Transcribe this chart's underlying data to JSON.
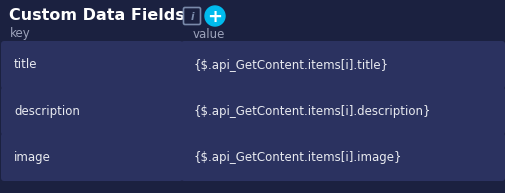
{
  "title": "Custom Data Fields",
  "bg_color": "#1b2140",
  "header_text_color": "#ffffff",
  "col_label_color": "#9da3bb",
  "cell_bg_color": "#2b3260",
  "cell_border_color": "#3a4070",
  "cell_text_color": "#e8eaf0",
  "col_key_label": "key",
  "col_value_label": "value",
  "rows": [
    {
      "key": "title",
      "value": "{$.api_GetContent.items[i].title}"
    },
    {
      "key": "description",
      "value": "{$.api_GetContent.items[i].description}"
    },
    {
      "key": "image",
      "value": "{$.api_GetContent.items[i].image}"
    }
  ],
  "info_icon_border_color": "#7a8aaa",
  "info_icon_bg": "#1b2140",
  "plus_icon_color": "#00bbee",
  "title_fontsize": 11.5,
  "col_label_fontsize": 8.5,
  "cell_fontsize": 8.5,
  "figw": 5.06,
  "figh": 1.93,
  "dpi": 100
}
